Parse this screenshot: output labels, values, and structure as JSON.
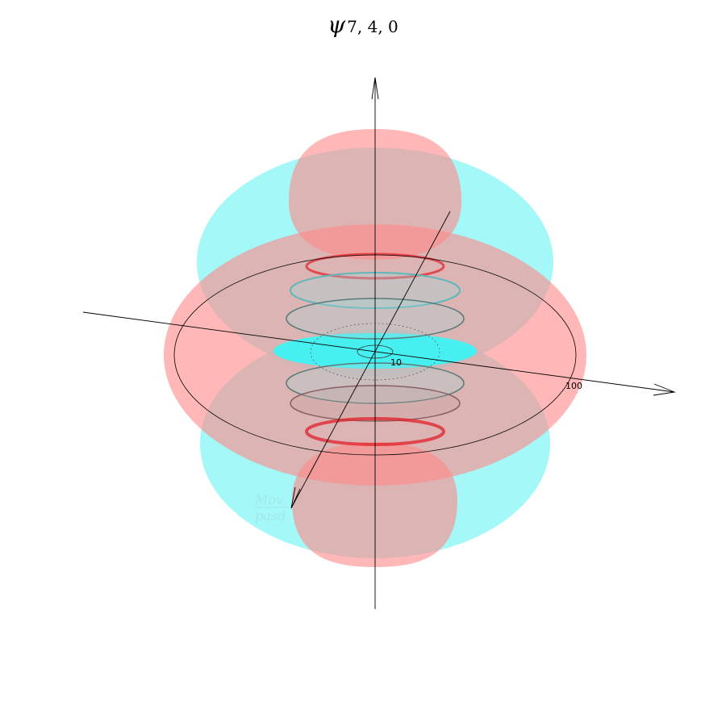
{
  "title": {
    "symbol": "ψ",
    "subscript": "7, 4, 0"
  },
  "axes": {
    "tick_labels": [
      "10",
      "100"
    ]
  },
  "watermark": {
    "line1": "Mov",
    "line2": "pasd"
  },
  "colors": {
    "positive_lobe": "#ff8a8a",
    "negative_lobe": "#7ff5f5",
    "overlap": "#a9a9a9",
    "axis": "#000000"
  }
}
